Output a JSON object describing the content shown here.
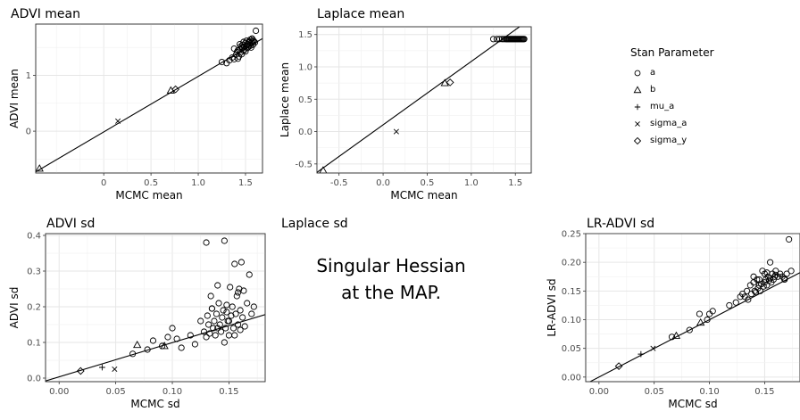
{
  "legend": {
    "title": "Stan Parameter",
    "entries": [
      {
        "label": "a",
        "shape": "circle"
      },
      {
        "label": "b",
        "shape": "triangle"
      },
      {
        "label": "mu_a",
        "shape": "plus"
      },
      {
        "label": "sigma_a",
        "shape": "cross"
      },
      {
        "label": "sigma_y",
        "shape": "diamond"
      }
    ]
  },
  "note": {
    "title": "Laplace sd",
    "line1": "Singular Hessian",
    "line2": "at the MAP."
  },
  "chart_data": [
    {
      "type": "scatter",
      "title": "ADVI mean",
      "xlabel": "MCMC mean",
      "ylabel": "ADVI mean",
      "xlim": [
        -0.72,
        1.68
      ],
      "ylim": [
        -0.75,
        1.92
      ],
      "xticks": [
        0,
        0.5,
        1.0,
        1.5
      ],
      "xtick_labels": [
        "0",
        "0.5",
        "1.0",
        "1.5"
      ],
      "yticks": [
        0,
        1
      ],
      "ytick_labels": [
        "0",
        "1"
      ],
      "reference_line": "y = x",
      "grid": true,
      "points": [
        {
          "param": "a",
          "x": [
            1.25,
            1.3,
            1.33,
            1.36,
            1.38,
            1.4,
            1.41,
            1.42,
            1.43,
            1.44,
            1.44,
            1.45,
            1.46,
            1.46,
            1.47,
            1.47,
            1.48,
            1.48,
            1.49,
            1.49,
            1.5,
            1.5,
            1.51,
            1.51,
            1.52,
            1.52,
            1.53,
            1.53,
            1.54,
            1.54,
            1.55,
            1.55,
            1.56,
            1.56,
            1.57,
            1.58,
            1.58,
            1.59,
            1.6,
            1.42,
            1.38,
            1.45,
            1.57,
            1.61
          ],
          "y": [
            1.24,
            1.22,
            1.27,
            1.32,
            1.29,
            1.37,
            1.42,
            1.45,
            1.34,
            1.56,
            1.46,
            1.41,
            1.5,
            1.38,
            1.49,
            1.55,
            1.44,
            1.6,
            1.52,
            1.47,
            1.58,
            1.43,
            1.54,
            1.62,
            1.49,
            1.56,
            1.59,
            1.51,
            1.61,
            1.55,
            1.53,
            1.64,
            1.58,
            1.5,
            1.6,
            1.63,
            1.55,
            1.61,
            1.59,
            1.3,
            1.48,
            1.52,
            1.66,
            1.8
          ]
        },
        {
          "param": "b",
          "x": [
            -0.68,
            0.71
          ],
          "y": [
            -0.67,
            0.73
          ]
        },
        {
          "param": "sigma_a",
          "x": [
            0.15
          ],
          "y": [
            0.18
          ]
        },
        {
          "param": "sigma_y",
          "x": [
            0.76
          ],
          "y": [
            0.75
          ]
        }
      ]
    },
    {
      "type": "scatter",
      "title": "Laplace mean",
      "xlabel": "MCMC mean",
      "ylabel": "Laplace mean",
      "xlim": [
        -0.75,
        1.68
      ],
      "ylim": [
        -0.64,
        1.62
      ],
      "xticks": [
        -0.5,
        0,
        0.5,
        1.0,
        1.5
      ],
      "xtick_labels": [
        "-0.5",
        "0.0",
        "0.5",
        "1.0",
        "1.5"
      ],
      "yticks": [
        -0.5,
        0,
        0.5,
        1.0,
        1.5
      ],
      "ytick_labels": [
        "-0.5",
        "0.0",
        "0.5",
        "1.0",
        "1.5"
      ],
      "reference_line": "y = x",
      "grid": true,
      "points": [
        {
          "param": "a",
          "x": [
            1.25,
            1.29,
            1.32,
            1.35,
            1.37,
            1.39,
            1.4,
            1.41,
            1.42,
            1.43,
            1.44,
            1.45,
            1.46,
            1.47,
            1.48,
            1.49,
            1.5,
            1.51,
            1.52,
            1.53,
            1.54,
            1.55,
            1.56,
            1.57,
            1.58,
            1.59,
            1.6
          ],
          "y": [
            1.43,
            1.43,
            1.43,
            1.43,
            1.43,
            1.43,
            1.43,
            1.43,
            1.43,
            1.43,
            1.43,
            1.43,
            1.43,
            1.43,
            1.43,
            1.43,
            1.43,
            1.43,
            1.43,
            1.43,
            1.43,
            1.43,
            1.43,
            1.43,
            1.43,
            1.43,
            1.43
          ]
        },
        {
          "param": "b",
          "x": [
            -0.68,
            0.7
          ],
          "y": [
            -0.6,
            0.75
          ]
        },
        {
          "param": "sigma_a",
          "x": [
            0.15
          ],
          "y": [
            0.0
          ]
        },
        {
          "param": "sigma_y",
          "x": [
            0.76
          ],
          "y": [
            0.76
          ]
        }
      ]
    },
    {
      "type": "scatter",
      "title": "ADVI sd",
      "xlabel": "MCMC sd",
      "ylabel": "ADVI sd",
      "xlim": [
        -0.012,
        0.182
      ],
      "ylim": [
        -0.01,
        0.405
      ],
      "xticks": [
        0,
        0.05,
        0.1,
        0.15
      ],
      "xtick_labels": [
        "0.00",
        "0.05",
        "0.10",
        "0.15"
      ],
      "yticks": [
        0,
        0.1,
        0.2,
        0.3,
        0.4
      ],
      "ytick_labels": [
        "0.0",
        "0.1",
        "0.2",
        "0.3",
        "0.4"
      ],
      "reference_line": "ADVI sd vs MCMC sd regression",
      "grid": true,
      "points": [
        {
          "param": "a",
          "x": [
            0.065,
            0.078,
            0.083,
            0.091,
            0.096,
            0.1,
            0.104,
            0.108,
            0.116,
            0.12,
            0.125,
            0.128,
            0.13,
            0.131,
            0.132,
            0.133,
            0.134,
            0.135,
            0.136,
            0.137,
            0.138,
            0.139,
            0.14,
            0.141,
            0.142,
            0.143,
            0.144,
            0.145,
            0.146,
            0.147,
            0.148,
            0.149,
            0.15,
            0.151,
            0.152,
            0.153,
            0.154,
            0.155,
            0.156,
            0.157,
            0.158,
            0.159,
            0.16,
            0.161,
            0.162,
            0.164,
            0.166,
            0.168,
            0.17,
            0.172,
            0.13,
            0.146,
            0.155,
            0.158,
            0.16,
            0.14,
            0.135,
            0.15,
            0.163,
            0.148
          ],
          "y": [
            0.068,
            0.08,
            0.105,
            0.09,
            0.115,
            0.14,
            0.11,
            0.085,
            0.12,
            0.095,
            0.16,
            0.13,
            0.38,
            0.175,
            0.15,
            0.125,
            0.23,
            0.195,
            0.14,
            0.16,
            0.12,
            0.18,
            0.14,
            0.21,
            0.15,
            0.13,
            0.17,
            0.19,
            0.385,
            0.14,
            0.205,
            0.16,
            0.12,
            0.255,
            0.175,
            0.2,
            0.14,
            0.32,
            0.18,
            0.23,
            0.15,
            0.25,
            0.19,
            0.325,
            0.17,
            0.145,
            0.21,
            0.29,
            0.18,
            0.2,
            0.115,
            0.1,
            0.12,
            0.24,
            0.135,
            0.26,
            0.195,
            0.16,
            0.245,
            0.185
          ]
        },
        {
          "param": "b",
          "x": [
            0.069,
            0.093
          ],
          "y": [
            0.093,
            0.09
          ]
        },
        {
          "param": "mu_a",
          "x": [
            0.038
          ],
          "y": [
            0.03
          ]
        },
        {
          "param": "sigma_a",
          "x": [
            0.049
          ],
          "y": [
            0.025
          ]
        },
        {
          "param": "sigma_y",
          "x": [
            0.019
          ],
          "y": [
            0.02
          ]
        }
      ]
    },
    {
      "type": "scatter",
      "title": "LR-ADVI sd",
      "xlabel": "MCMC sd",
      "ylabel": "LR-ADVI sd",
      "xlim": [
        -0.012,
        0.182
      ],
      "ylim": [
        -0.008,
        0.25
      ],
      "xticks": [
        0,
        0.05,
        0.1,
        0.15
      ],
      "xtick_labels": [
        "0.00",
        "0.05",
        "0.10",
        "0.15"
      ],
      "yticks": [
        0,
        0.05,
        0.1,
        0.15,
        0.2,
        0.25
      ],
      "ytick_labels": [
        "0.00",
        "0.05",
        "0.10",
        "0.15",
        "0.20",
        "0.25"
      ],
      "reference_line": "y = x",
      "grid": true,
      "points": [
        {
          "param": "a",
          "x": [
            0.066,
            0.082,
            0.091,
            0.098,
            0.1,
            0.103,
            0.118,
            0.124,
            0.128,
            0.13,
            0.132,
            0.134,
            0.135,
            0.137,
            0.138,
            0.14,
            0.141,
            0.142,
            0.143,
            0.144,
            0.145,
            0.146,
            0.147,
            0.148,
            0.149,
            0.15,
            0.151,
            0.152,
            0.153,
            0.154,
            0.155,
            0.156,
            0.157,
            0.158,
            0.159,
            0.16,
            0.162,
            0.164,
            0.166,
            0.168,
            0.17,
            0.172,
            0.174,
            0.14,
            0.15,
            0.155,
            0.145,
            0.16,
            0.152,
            0.168
          ],
          "y": [
            0.07,
            0.082,
            0.11,
            0.1,
            0.11,
            0.115,
            0.125,
            0.13,
            0.14,
            0.145,
            0.14,
            0.15,
            0.135,
            0.16,
            0.145,
            0.165,
            0.15,
            0.148,
            0.17,
            0.155,
            0.16,
            0.15,
            0.162,
            0.185,
            0.158,
            0.165,
            0.17,
            0.16,
            0.175,
            0.168,
            0.172,
            0.165,
            0.18,
            0.17,
            0.175,
            0.185,
            0.175,
            0.18,
            0.175,
            0.17,
            0.18,
            0.24,
            0.185,
            0.175,
            0.18,
            0.2,
            0.17,
            0.178,
            0.182,
            0.172
          ]
        },
        {
          "param": "b",
          "x": [
            0.07,
            0.092
          ],
          "y": [
            0.072,
            0.095
          ]
        },
        {
          "param": "mu_a",
          "x": [
            0.038
          ],
          "y": [
            0.04
          ]
        },
        {
          "param": "sigma_a",
          "x": [
            0.049
          ],
          "y": [
            0.05
          ]
        },
        {
          "param": "sigma_y",
          "x": [
            0.018
          ],
          "y": [
            0.019
          ]
        }
      ]
    }
  ]
}
